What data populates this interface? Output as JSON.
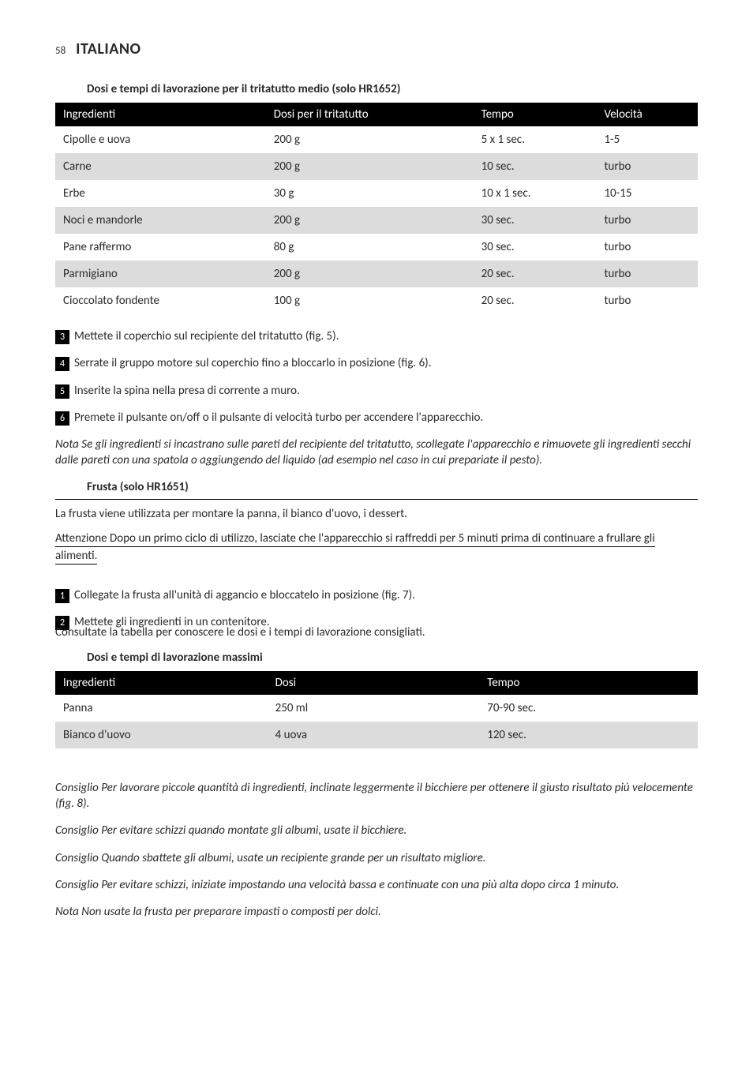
{
  "header": {
    "page_number": "58",
    "language": "ITALIANO"
  },
  "table1": {
    "title": "Dosi e tempi di lavorazione per il tritatutto medio (solo HR1652)",
    "columns": [
      "Ingredienti",
      "Dosi per il tritatutto",
      "Tempo",
      "Velocità"
    ],
    "rows": [
      [
        "Cipolle e uova",
        "200 g",
        "5 x 1 sec.",
        "1-5"
      ],
      [
        "Carne",
        "200 g",
        "10 sec.",
        "turbo"
      ],
      [
        "Erbe",
        "30 g",
        "10 x 1 sec.",
        "10-15"
      ],
      [
        "Noci e mandorle",
        "200 g",
        "30 sec.",
        "turbo"
      ],
      [
        "Pane raffermo",
        "80 g",
        "30 sec.",
        "turbo"
      ],
      [
        "Parmigiano",
        "200 g",
        "20 sec.",
        "turbo"
      ],
      [
        "Cioccolato fondente",
        "100 g",
        "20 sec.",
        "turbo"
      ]
    ]
  },
  "steps_a": {
    "3": "Mettete il coperchio sul recipiente del tritatutto (fig. 5).",
    "4": "Serrate il gruppo motore sul coperchio fino a bloccarlo in posizione (fig. 6).",
    "5": "Inserite la spina nella presa di corrente a muro.",
    "6": "Premete il pulsante on/off o il pulsante di velocità turbo per accendere l'apparecchio."
  },
  "note_a": "Nota Se gli ingredienti si incastrano sulle pareti del recipiente del tritatutto, scollegate l'apparecchio e rimuovete gli ingredienti secchi dalle pareti con una spatola o aggiungendo del liquido (ad esempio nel caso in cui prepariate il pesto).",
  "frusta": {
    "heading": "Frusta (solo HR1651)",
    "intro": "La frusta viene utilizzata per montare la panna, il bianco d'uovo, i dessert.",
    "caution": "Attenzione Dopo un primo ciclo di utilizzo, lasciate che l'apparecchio si raffreddi per 5 minuti prima di continuare a frullare gli alimenti."
  },
  "steps_b": {
    "1": "Collegate la frusta all'unità di aggancio e bloccatelo in posizione (fig. 7).",
    "2": "Mettete gli ingredienti in un contenitore.",
    "2_sub": "Consultate la tabella per conoscere le dosi e i tempi di lavorazione consigliati."
  },
  "table2": {
    "title": "Dosi e tempi di lavorazione massimi",
    "columns": [
      "Ingredienti",
      "Dosi",
      "Tempo"
    ],
    "rows": [
      [
        "Panna",
        "250 ml",
        "70-90 sec."
      ],
      [
        "Bianco d'uovo",
        "4 uova",
        "120 sec."
      ]
    ]
  },
  "tips": {
    "t1": "Consiglio Per lavorare piccole quantità di ingredienti, inclinate leggermente il bicchiere per ottenere il giusto risultato più velocemente (fig. 8).",
    "t2": "Consiglio Per evitare schizzi quando montate gli albumi, usate il bicchiere.",
    "t3": "Consiglio Quando sbattete gli albumi, usate un recipiente grande per un risultato migliore.",
    "t4": "Consiglio Per evitare schizzi, iniziate impostando una velocità bassa e continuate con una più alta dopo circa 1 minuto.",
    "t5": "Nota Non usate la frusta per preparare impasti o composti per dolci."
  }
}
